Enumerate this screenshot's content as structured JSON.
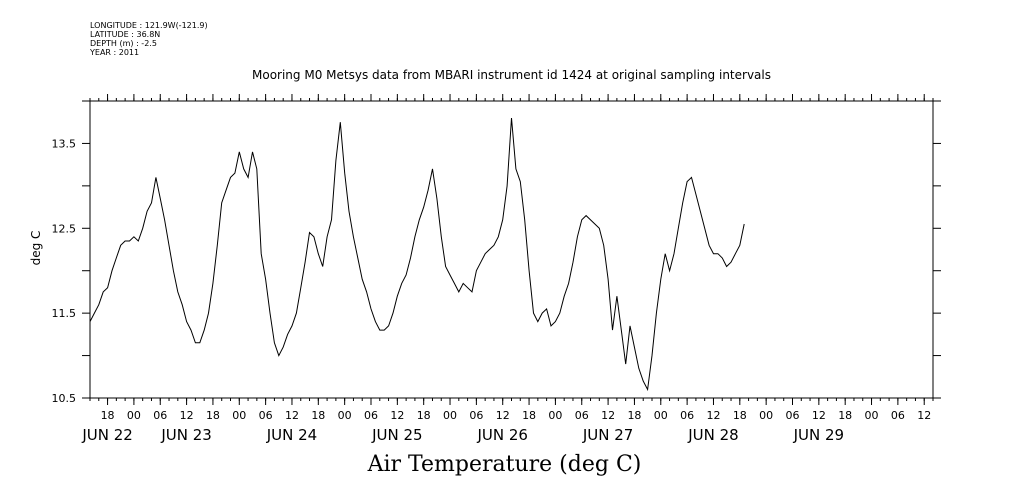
{
  "header": {
    "longitude": "LONGITUDE : 121.9W(-121.9)",
    "latitude": "LATITUDE : 36.8N",
    "depth": "DEPTH (m) : -2.5",
    "year": "YEAR : 2011",
    "title": "Mooring M0 Metsys data from MBARI instrument id 1424 at original sampling intervals"
  },
  "chart_data": {
    "type": "line",
    "title": "Mooring M0 Metsys data from MBARI instrument id 1424 at original sampling intervals",
    "xlabel": "Air Temperature (deg C)",
    "ylabel": "deg C",
    "ylim": [
      10.5,
      14.0
    ],
    "yticks": [
      10.5,
      11.5,
      12.5,
      13.5
    ],
    "ytick_labels": [
      "10.5",
      "11.5",
      "12.5",
      "13.5"
    ],
    "xlim": [
      "2011-06-21T14:00",
      "2011-06-29T14:00"
    ],
    "x_hour_ticks": [
      {
        "t": "2011-06-21T18:00",
        "label": "18"
      },
      {
        "t": "2011-06-22T00:00",
        "label": "00"
      },
      {
        "t": "2011-06-22T06:00",
        "label": "06"
      },
      {
        "t": "2011-06-22T12:00",
        "label": "12"
      },
      {
        "t": "2011-06-22T18:00",
        "label": "18"
      },
      {
        "t": "2011-06-23T00:00",
        "label": "00"
      },
      {
        "t": "2011-06-23T06:00",
        "label": "06"
      },
      {
        "t": "2011-06-23T12:00",
        "label": "12"
      },
      {
        "t": "2011-06-23T18:00",
        "label": "18"
      },
      {
        "t": "2011-06-24T00:00",
        "label": "00"
      },
      {
        "t": "2011-06-24T06:00",
        "label": "06"
      },
      {
        "t": "2011-06-24T12:00",
        "label": "12"
      },
      {
        "t": "2011-06-24T18:00",
        "label": "18"
      },
      {
        "t": "2011-06-25T00:00",
        "label": "00"
      },
      {
        "t": "2011-06-25T06:00",
        "label": "06"
      },
      {
        "t": "2011-06-25T12:00",
        "label": "12"
      },
      {
        "t": "2011-06-25T18:00",
        "label": "18"
      },
      {
        "t": "2011-06-26T00:00",
        "label": "00"
      },
      {
        "t": "2011-06-26T06:00",
        "label": "06"
      },
      {
        "t": "2011-06-26T12:00",
        "label": "12"
      },
      {
        "t": "2011-06-26T18:00",
        "label": "18"
      },
      {
        "t": "2011-06-27T00:00",
        "label": "00"
      },
      {
        "t": "2011-06-27T06:00",
        "label": "06"
      },
      {
        "t": "2011-06-27T12:00",
        "label": "12"
      },
      {
        "t": "2011-06-27T18:00",
        "label": "18"
      },
      {
        "t": "2011-06-28T00:00",
        "label": "00"
      },
      {
        "t": "2011-06-28T06:00",
        "label": "06"
      },
      {
        "t": "2011-06-28T12:00",
        "label": "12"
      },
      {
        "t": "2011-06-28T18:00",
        "label": "18"
      },
      {
        "t": "2011-06-29T00:00",
        "label": "00"
      },
      {
        "t": "2011-06-29T06:00",
        "label": "06"
      },
      {
        "t": "2011-06-29T12:00",
        "label": "12"
      }
    ],
    "x_day_labels": [
      {
        "t": "2011-06-21T18:00",
        "label": "JUN 22"
      },
      {
        "t": "2011-06-22T12:00",
        "label": "JUN 23"
      },
      {
        "t": "2011-06-23T12:00",
        "label": "JUN 24"
      },
      {
        "t": "2011-06-24T12:00",
        "label": "JUN 25"
      },
      {
        "t": "2011-06-25T12:00",
        "label": "JUN 26"
      },
      {
        "t": "2011-06-26T12:00",
        "label": "JUN 27"
      },
      {
        "t": "2011-06-27T12:00",
        "label": "JUN 28"
      },
      {
        "t": "2011-06-28T12:00",
        "label": "JUN 29"
      }
    ],
    "grid": false,
    "series": [
      {
        "points": [
          [
            "2011-06-21T14:00",
            11.4
          ],
          [
            "2011-06-21T15:00",
            11.5
          ],
          [
            "2011-06-21T16:00",
            11.6
          ],
          [
            "2011-06-21T17:00",
            11.75
          ],
          [
            "2011-06-21T18:00",
            11.8
          ],
          [
            "2011-06-21T19:00",
            12.0
          ],
          [
            "2011-06-21T20:00",
            12.15
          ],
          [
            "2011-06-21T21:00",
            12.3
          ],
          [
            "2011-06-21T22:00",
            12.35
          ],
          [
            "2011-06-21T23:00",
            12.35
          ],
          [
            "2011-06-22T00:00",
            12.4
          ],
          [
            "2011-06-22T01:00",
            12.35
          ],
          [
            "2011-06-22T02:00",
            12.5
          ],
          [
            "2011-06-22T03:00",
            12.7
          ],
          [
            "2011-06-22T04:00",
            12.8
          ],
          [
            "2011-06-22T05:00",
            13.1
          ],
          [
            "2011-06-22T06:00",
            12.85
          ],
          [
            "2011-06-22T07:00",
            12.6
          ],
          [
            "2011-06-22T08:00",
            12.3
          ],
          [
            "2011-06-22T09:00",
            12.0
          ],
          [
            "2011-06-22T10:00",
            11.75
          ],
          [
            "2011-06-22T11:00",
            11.6
          ],
          [
            "2011-06-22T12:00",
            11.4
          ],
          [
            "2011-06-22T13:00",
            11.3
          ],
          [
            "2011-06-22T14:00",
            11.15
          ],
          [
            "2011-06-22T15:00",
            11.15
          ],
          [
            "2011-06-22T16:00",
            11.3
          ],
          [
            "2011-06-22T17:00",
            11.5
          ],
          [
            "2011-06-22T18:00",
            11.85
          ],
          [
            "2011-06-22T19:00",
            12.3
          ],
          [
            "2011-06-22T20:00",
            12.8
          ],
          [
            "2011-06-22T21:00",
            12.95
          ],
          [
            "2011-06-22T22:00",
            13.1
          ],
          [
            "2011-06-22T23:00",
            13.15
          ],
          [
            "2011-06-23T00:00",
            13.4
          ],
          [
            "2011-06-23T01:00",
            13.2
          ],
          [
            "2011-06-23T02:00",
            13.1
          ],
          [
            "2011-06-23T03:00",
            13.4
          ],
          [
            "2011-06-23T04:00",
            13.2
          ],
          [
            "2011-06-23T05:00",
            12.2
          ],
          [
            "2011-06-23T06:00",
            11.9
          ],
          [
            "2011-06-23T07:00",
            11.5
          ],
          [
            "2011-06-23T08:00",
            11.15
          ],
          [
            "2011-06-23T09:00",
            11.0
          ],
          [
            "2011-06-23T10:00",
            11.1
          ],
          [
            "2011-06-23T11:00",
            11.25
          ],
          [
            "2011-06-23T12:00",
            11.35
          ],
          [
            "2011-06-23T13:00",
            11.5
          ],
          [
            "2011-06-23T14:00",
            11.8
          ],
          [
            "2011-06-23T15:00",
            12.1
          ],
          [
            "2011-06-23T16:00",
            12.45
          ],
          [
            "2011-06-23T17:00",
            12.4
          ],
          [
            "2011-06-23T18:00",
            12.2
          ],
          [
            "2011-06-23T19:00",
            12.05
          ],
          [
            "2011-06-23T20:00",
            12.4
          ],
          [
            "2011-06-23T21:00",
            12.6
          ],
          [
            "2011-06-23T22:00",
            13.3
          ],
          [
            "2011-06-23T23:00",
            13.75
          ],
          [
            "2011-06-24T00:00",
            13.15
          ],
          [
            "2011-06-24T01:00",
            12.7
          ],
          [
            "2011-06-24T02:00",
            12.4
          ],
          [
            "2011-06-24T03:00",
            12.15
          ],
          [
            "2011-06-24T04:00",
            11.9
          ],
          [
            "2011-06-24T05:00",
            11.75
          ],
          [
            "2011-06-24T06:00",
            11.55
          ],
          [
            "2011-06-24T07:00",
            11.4
          ],
          [
            "2011-06-24T08:00",
            11.3
          ],
          [
            "2011-06-24T09:00",
            11.3
          ],
          [
            "2011-06-24T10:00",
            11.35
          ],
          [
            "2011-06-24T11:00",
            11.5
          ],
          [
            "2011-06-24T12:00",
            11.7
          ],
          [
            "2011-06-24T13:00",
            11.85
          ],
          [
            "2011-06-24T14:00",
            11.95
          ],
          [
            "2011-06-24T15:00",
            12.15
          ],
          [
            "2011-06-24T16:00",
            12.4
          ],
          [
            "2011-06-24T17:00",
            12.6
          ],
          [
            "2011-06-24T18:00",
            12.75
          ],
          [
            "2011-06-24T19:00",
            12.95
          ],
          [
            "2011-06-24T20:00",
            13.2
          ],
          [
            "2011-06-24T21:00",
            12.85
          ],
          [
            "2011-06-24T22:00",
            12.4
          ],
          [
            "2011-06-24T23:00",
            12.05
          ],
          [
            "2011-06-25T00:00",
            11.95
          ],
          [
            "2011-06-25T01:00",
            11.85
          ],
          [
            "2011-06-25T02:00",
            11.75
          ],
          [
            "2011-06-25T03:00",
            11.85
          ],
          [
            "2011-06-25T04:00",
            11.8
          ],
          [
            "2011-06-25T05:00",
            11.75
          ],
          [
            "2011-06-25T06:00",
            12.0
          ],
          [
            "2011-06-25T07:00",
            12.1
          ],
          [
            "2011-06-25T08:00",
            12.2
          ],
          [
            "2011-06-25T09:00",
            12.25
          ],
          [
            "2011-06-25T10:00",
            12.3
          ],
          [
            "2011-06-25T11:00",
            12.4
          ],
          [
            "2011-06-25T12:00",
            12.6
          ],
          [
            "2011-06-25T13:00",
            13.0
          ],
          [
            "2011-06-25T14:00",
            13.8
          ],
          [
            "2011-06-25T15:00",
            13.2
          ],
          [
            "2011-06-25T16:00",
            13.05
          ],
          [
            "2011-06-25T17:00",
            12.6
          ],
          [
            "2011-06-25T18:00",
            12.0
          ],
          [
            "2011-06-25T19:00",
            11.5
          ],
          [
            "2011-06-25T20:00",
            11.4
          ],
          [
            "2011-06-25T21:00",
            11.5
          ],
          [
            "2011-06-25T22:00",
            11.55
          ],
          [
            "2011-06-25T23:00",
            11.35
          ],
          [
            "2011-06-26T00:00",
            11.4
          ],
          [
            "2011-06-26T01:00",
            11.5
          ],
          [
            "2011-06-26T02:00",
            11.7
          ],
          [
            "2011-06-26T03:00",
            11.85
          ],
          [
            "2011-06-26T04:00",
            12.1
          ],
          [
            "2011-06-26T05:00",
            12.4
          ],
          [
            "2011-06-26T06:00",
            12.6
          ],
          [
            "2011-06-26T07:00",
            12.65
          ],
          [
            "2011-06-26T10:00",
            12.5
          ],
          [
            "2011-06-26T11:00",
            12.3
          ],
          [
            "2011-06-26T12:00",
            11.9
          ],
          [
            "2011-06-26T13:00",
            11.3
          ],
          [
            "2011-06-26T14:00",
            11.7
          ],
          [
            "2011-06-26T15:00",
            11.3
          ],
          [
            "2011-06-26T16:00",
            10.9
          ],
          [
            "2011-06-26T17:00",
            11.35
          ],
          [
            "2011-06-26T18:00",
            11.1
          ],
          [
            "2011-06-26T19:00",
            10.85
          ],
          [
            "2011-06-26T20:00",
            10.7
          ],
          [
            "2011-06-26T21:00",
            10.6
          ],
          [
            "2011-06-26T22:00",
            11.0
          ],
          [
            "2011-06-26T23:00",
            11.5
          ],
          [
            "2011-06-27T00:00",
            11.9
          ],
          [
            "2011-06-27T01:00",
            12.2
          ],
          [
            "2011-06-27T02:00",
            12.0
          ],
          [
            "2011-06-27T03:00",
            12.2
          ],
          [
            "2011-06-27T04:00",
            12.5
          ],
          [
            "2011-06-27T05:00",
            12.8
          ],
          [
            "2011-06-27T06:00",
            13.05
          ],
          [
            "2011-06-27T07:00",
            13.1
          ],
          [
            "2011-06-27T08:00",
            12.9
          ],
          [
            "2011-06-27T09:00",
            12.7
          ],
          [
            "2011-06-27T10:00",
            12.5
          ],
          [
            "2011-06-27T11:00",
            12.3
          ],
          [
            "2011-06-27T12:00",
            12.2
          ],
          [
            "2011-06-27T13:00",
            12.2
          ],
          [
            "2011-06-27T14:00",
            12.15
          ],
          [
            "2011-06-27T15:00",
            12.05
          ],
          [
            "2011-06-27T16:00",
            12.1
          ],
          [
            "2011-06-27T17:00",
            12.2
          ],
          [
            "2011-06-27T18:00",
            12.3
          ],
          [
            "2011-06-27T19:00",
            12.55
          ]
        ]
      }
    ]
  }
}
